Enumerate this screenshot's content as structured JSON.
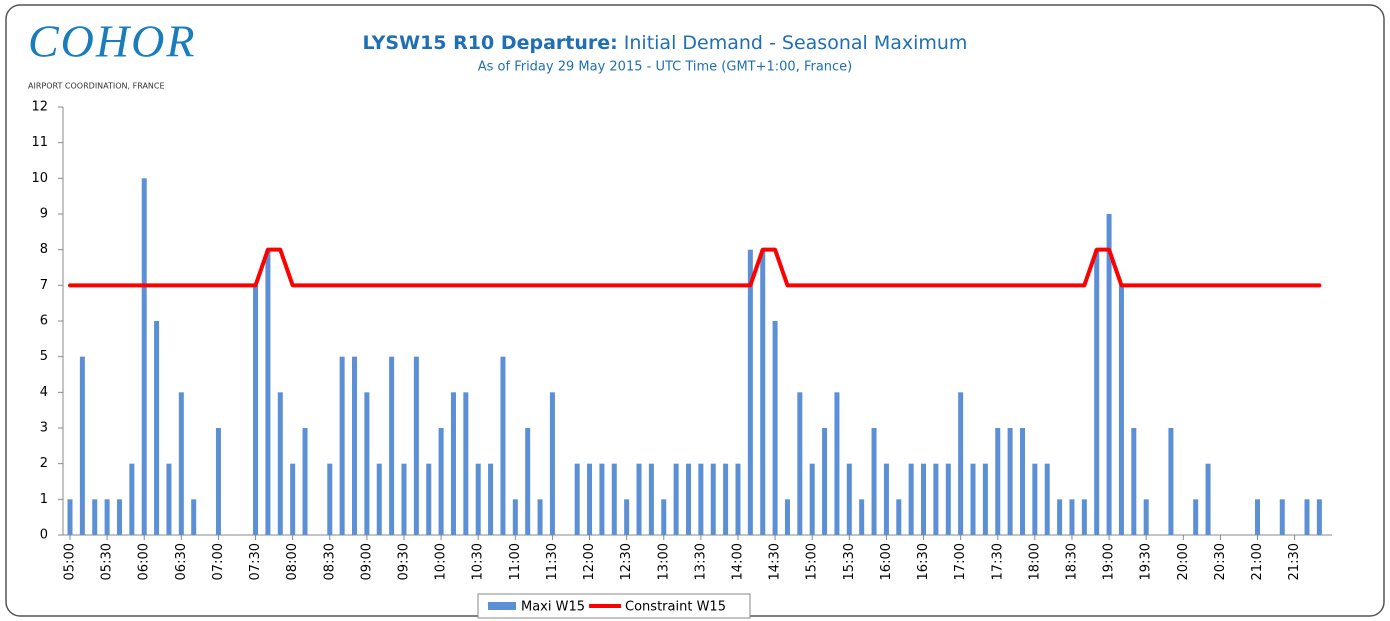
{
  "logo": {
    "name": "COHOR",
    "tagline": "AIRPORT COORDINATION, FRANCE"
  },
  "chart_data": {
    "type": "bar",
    "title_bold": "LYSW15 R10 Departure:",
    "title": "Initial Demand - Seasonal Maximum",
    "subtitle": "As of Friday 29 May 2015 - UTC Time (GMT+1:00,  France)",
    "categories": [
      "05:00",
      null,
      null,
      "05:30",
      null,
      null,
      "06:00",
      null,
      null,
      "06:30",
      null,
      null,
      "07:00",
      null,
      null,
      "07:30",
      null,
      null,
      "08:00",
      null,
      null,
      "08:30",
      null,
      null,
      "09:00",
      null,
      null,
      "09:30",
      null,
      null,
      "10:00",
      null,
      null,
      "10:30",
      null,
      null,
      "11:00",
      null,
      null,
      "11:30",
      null,
      null,
      "12:00",
      null,
      null,
      "12:30",
      null,
      null,
      "13:00",
      null,
      null,
      "13:30",
      null,
      null,
      "14:00",
      null,
      null,
      "14:30",
      null,
      null,
      "15:00",
      null,
      null,
      "15:30",
      null,
      null,
      "16:00",
      null,
      null,
      "16:30",
      null,
      null,
      "17:00",
      null,
      null,
      "17:30",
      null,
      null,
      "18:00",
      null,
      null,
      "18:30",
      null,
      null,
      "19:00",
      null,
      null,
      "19:30",
      null,
      null,
      "20:00",
      null,
      null,
      "20:30",
      null,
      null,
      "21:00",
      null,
      null,
      "21:30",
      null,
      null
    ],
    "series": [
      {
        "name": "Maxi W15",
        "color": "#5b8fd6",
        "type": "bar",
        "values": [
          1,
          5,
          1,
          1,
          1,
          2,
          10,
          6,
          2,
          4,
          1,
          0,
          3,
          0,
          0,
          7,
          8,
          4,
          2,
          3,
          0,
          2,
          5,
          5,
          4,
          2,
          5,
          2,
          5,
          2,
          3,
          4,
          4,
          2,
          2,
          5,
          1,
          3,
          1,
          4,
          0,
          2,
          2,
          2,
          2,
          1,
          2,
          2,
          1,
          2,
          2,
          2,
          2,
          2,
          2,
          8,
          8,
          6,
          1,
          4,
          2,
          3,
          4,
          2,
          1,
          3,
          2,
          1,
          2,
          2,
          2,
          2,
          4,
          2,
          2,
          3,
          3,
          3,
          2,
          2,
          1,
          1,
          1,
          8,
          9,
          7,
          3,
          1,
          0,
          3,
          0,
          1,
          2,
          0,
          0,
          0,
          1,
          0,
          1,
          0,
          1,
          1
        ]
      },
      {
        "name": "Constraint W15",
        "color": "#ff0000",
        "type": "line",
        "values": [
          7,
          7,
          7,
          7,
          7,
          7,
          7,
          7,
          7,
          7,
          7,
          7,
          7,
          7,
          7,
          7,
          8,
          8,
          7,
          7,
          7,
          7,
          7,
          7,
          7,
          7,
          7,
          7,
          7,
          7,
          7,
          7,
          7,
          7,
          7,
          7,
          7,
          7,
          7,
          7,
          7,
          7,
          7,
          7,
          7,
          7,
          7,
          7,
          7,
          7,
          7,
          7,
          7,
          7,
          7,
          7,
          8,
          8,
          7,
          7,
          7,
          7,
          7,
          7,
          7,
          7,
          7,
          7,
          7,
          7,
          7,
          7,
          7,
          7,
          7,
          7,
          7,
          7,
          7,
          7,
          7,
          7,
          7,
          8,
          8,
          7,
          7,
          7,
          7,
          7,
          7,
          7,
          7,
          7,
          7,
          7,
          7,
          7,
          7,
          7,
          7,
          7
        ]
      }
    ],
    "ylim": [
      0,
      12
    ],
    "yticks": [
      0,
      1,
      2,
      3,
      4,
      5,
      6,
      7,
      8,
      9,
      10,
      11,
      12
    ],
    "legend": "bottom"
  }
}
